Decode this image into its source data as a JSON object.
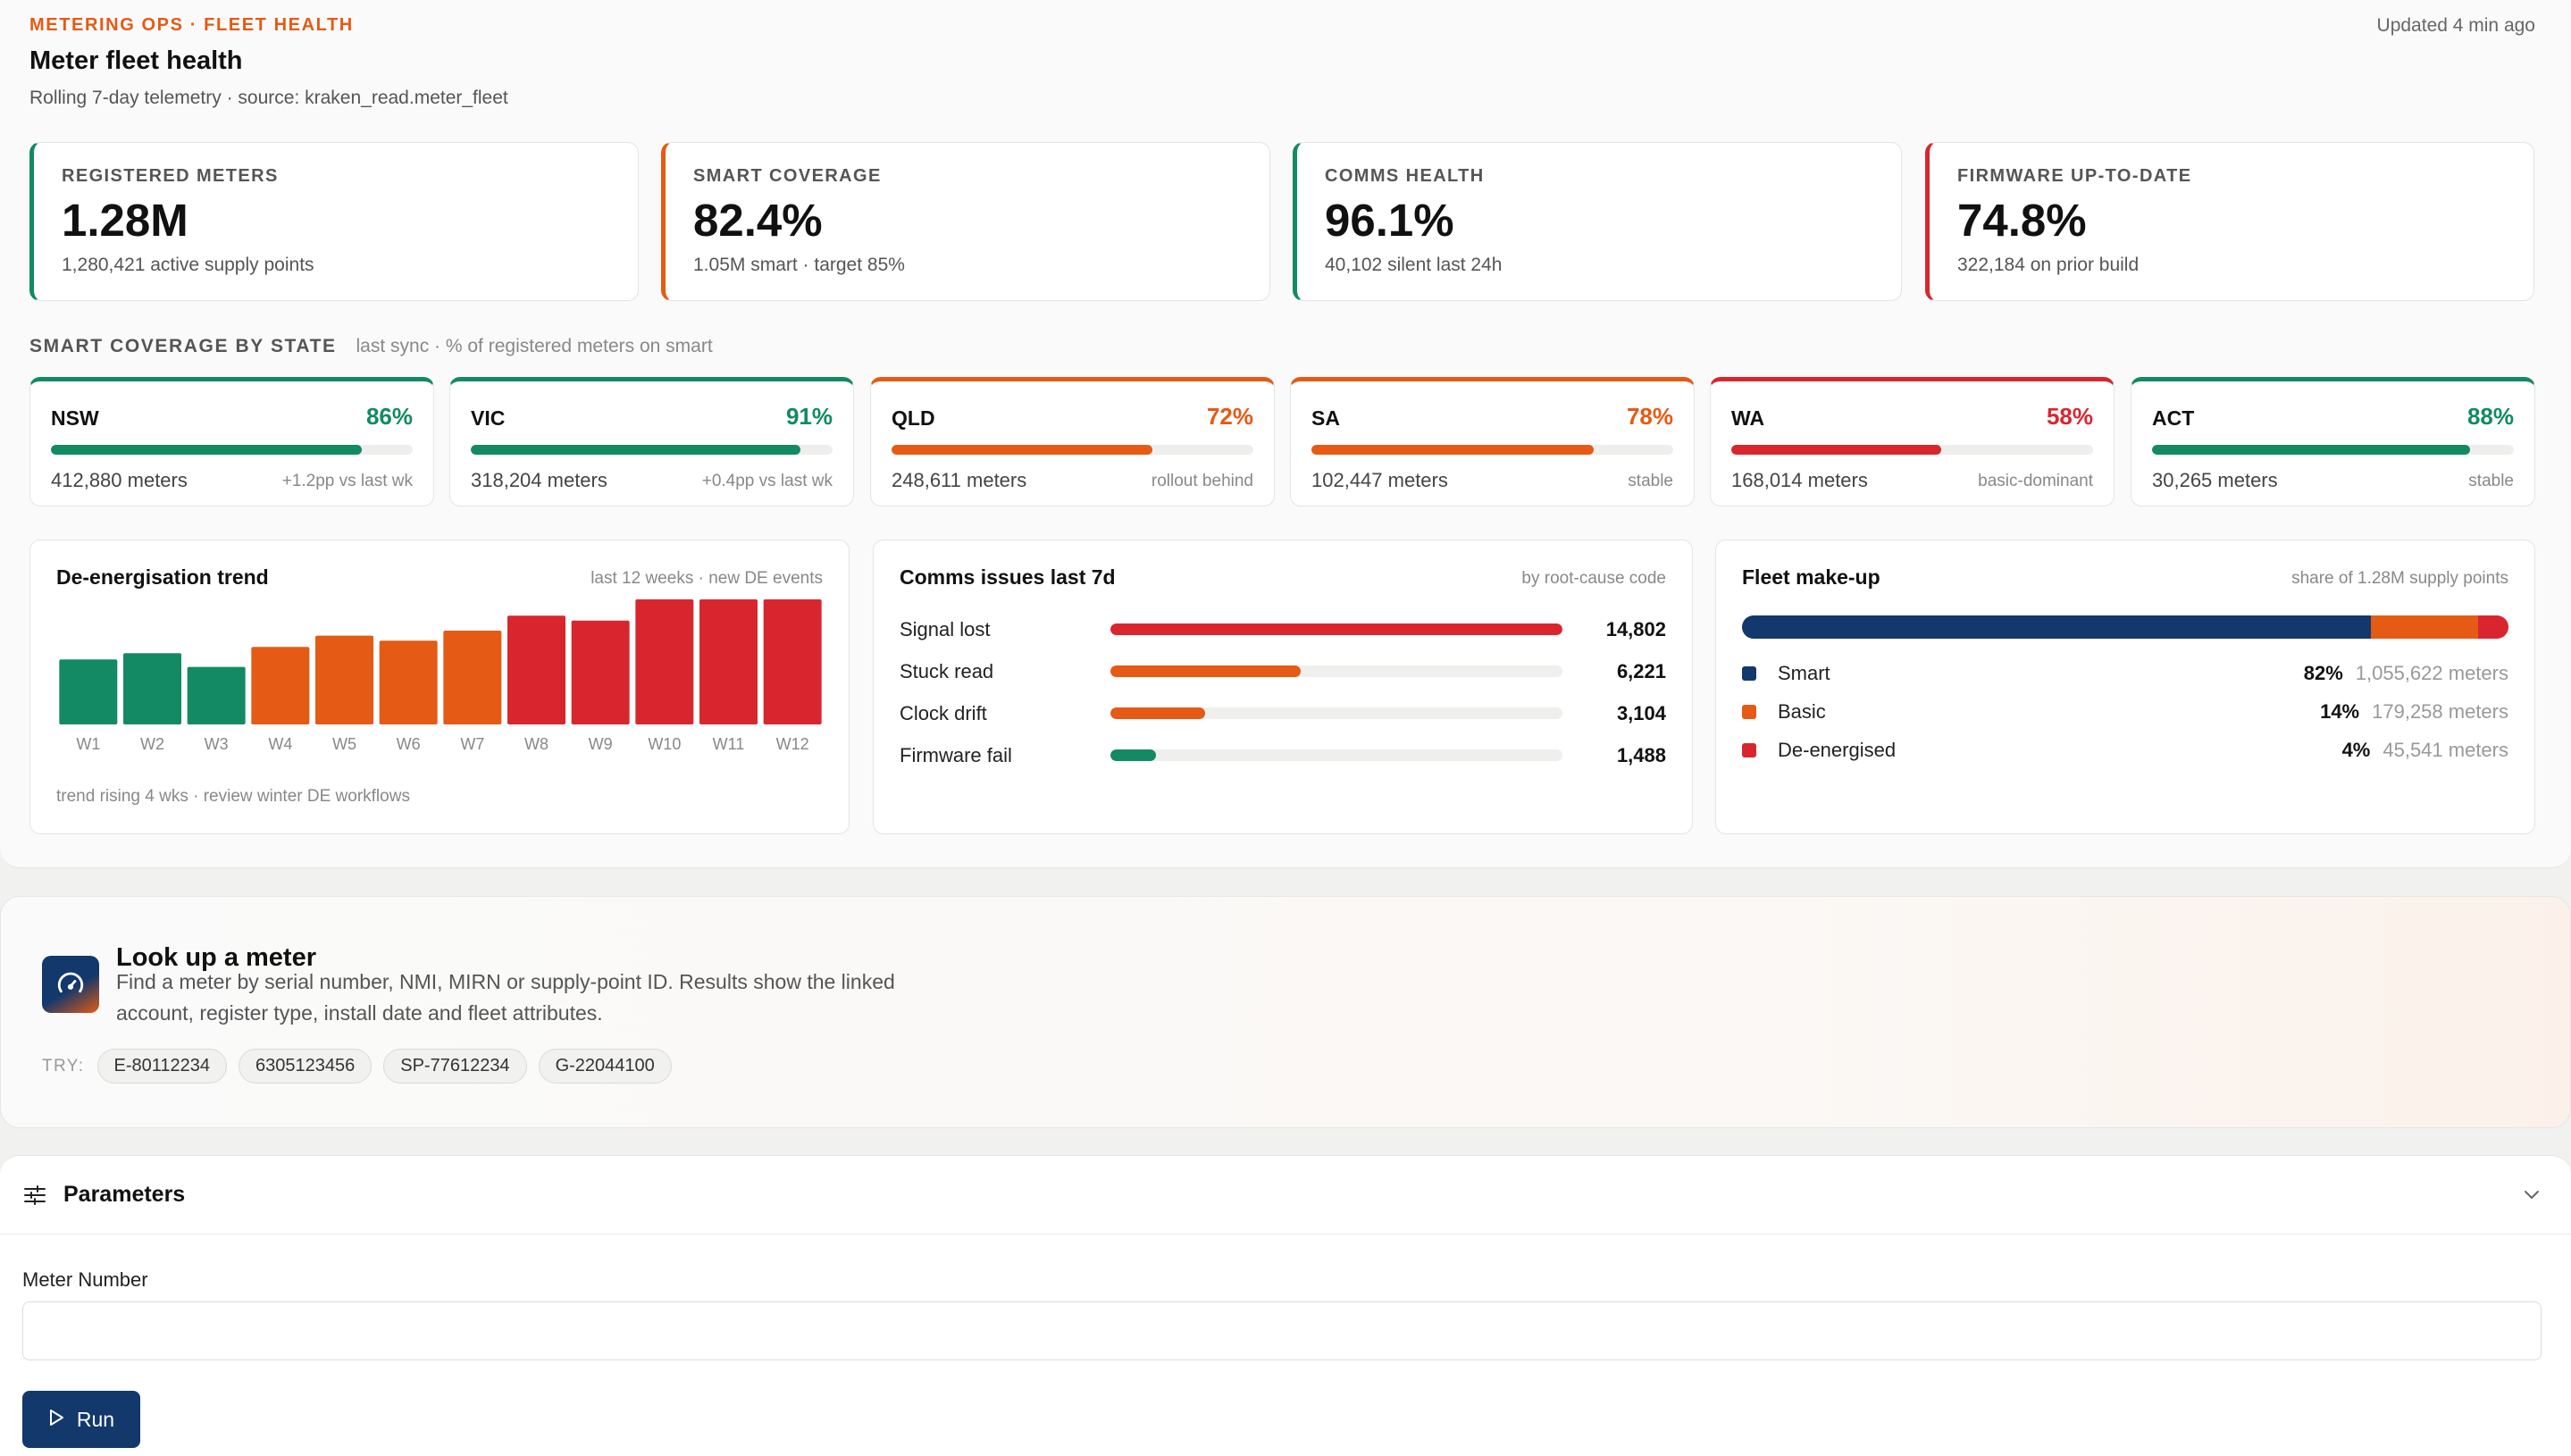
{
  "header": {
    "eyebrow": "METERING OPS · FLEET HEALTH",
    "title": "Meter fleet health",
    "subtitle": "Rolling 7-day telemetry · source: kraken_read.meter_fleet",
    "updated": "Updated 4 min ago"
  },
  "colors": {
    "green": "#138a63",
    "orange": "#e55a14",
    "red": "#d9262e",
    "navy": "#13386b"
  },
  "kpis": [
    {
      "label": "REGISTERED METERS",
      "value": "1.28M",
      "note": "1,280,421 active supply points",
      "accent": "#138a63"
    },
    {
      "label": "SMART COVERAGE",
      "value": "82.4%",
      "note": "1.05M smart · target 85%",
      "accent": "#e55a14"
    },
    {
      "label": "COMMS HEALTH",
      "value": "96.1%",
      "note": "40,102 silent last 24h",
      "accent": "#138a63"
    },
    {
      "label": "FIRMWARE UP-TO-DATE",
      "value": "74.8%",
      "note": "322,184 on prior build",
      "accent": "#d9262e"
    }
  ],
  "coverage_section": {
    "title": "SMART COVERAGE BY STATE",
    "meta": "last sync · % of registered meters on smart"
  },
  "states": [
    {
      "name": "NSW",
      "pct_label": "86%",
      "pct": 86,
      "meters": "412,880 meters",
      "delta": "+1.2pp vs last wk",
      "accent": "#138a63"
    },
    {
      "name": "VIC",
      "pct_label": "91%",
      "pct": 91,
      "meters": "318,204 meters",
      "delta": "+0.4pp vs last wk",
      "accent": "#138a63"
    },
    {
      "name": "QLD",
      "pct_label": "72%",
      "pct": 72,
      "meters": "248,611 meters",
      "delta": "rollout behind",
      "accent": "#e55a14"
    },
    {
      "name": "SA",
      "pct_label": "78%",
      "pct": 78,
      "meters": "102,447 meters",
      "delta": "stable",
      "accent": "#e55a14"
    },
    {
      "name": "WA",
      "pct_label": "58%",
      "pct": 58,
      "meters": "168,014 meters",
      "delta": "basic-dominant",
      "accent": "#d9262e"
    },
    {
      "name": "ACT",
      "pct_label": "88%",
      "pct": 88,
      "meters": "30,265 meters",
      "delta": "stable",
      "accent": "#138a63"
    }
  ],
  "trend": {
    "title": "De-energisation trend",
    "meta": "last 12 weeks · new DE events",
    "note": "trend rising 4 wks · review winter DE workflows"
  },
  "comms": {
    "title": "Comms issues last 7d",
    "meta": "by root-cause code",
    "rows": [
      {
        "label": "Signal lost",
        "value_label": "14,802",
        "value": 14802,
        "color": "#d9262e"
      },
      {
        "label": "Stuck read",
        "value_label": "6,221",
        "value": 6221,
        "color": "#e55a14"
      },
      {
        "label": "Clock drift",
        "value_label": "3,104",
        "value": 3104,
        "color": "#e55a14"
      },
      {
        "label": "Firmware fail",
        "value_label": "1,488",
        "value": 1488,
        "color": "#138a63"
      }
    ]
  },
  "makeup": {
    "title": "Fleet make-up",
    "meta": "share of 1.28M supply points",
    "rows": [
      {
        "label": "Smart",
        "pct_label": "82%",
        "pct": 82,
        "count": "1,055,622 meters",
        "color": "#13386b"
      },
      {
        "label": "Basic",
        "pct_label": "14%",
        "pct": 14,
        "count": "179,258 meters",
        "color": "#e55a14"
      },
      {
        "label": "De-energised",
        "pct_label": "4%",
        "pct": 4,
        "count": "45,541 meters",
        "color": "#d9262e"
      }
    ]
  },
  "chart_data": {
    "type": "bar",
    "categories": [
      "W1",
      "W2",
      "W3",
      "W4",
      "W5",
      "W6",
      "W7",
      "W8",
      "W9",
      "W10",
      "W11",
      "W12"
    ],
    "values": [
      52,
      57,
      46,
      62,
      71,
      67,
      75,
      87,
      83,
      100,
      100,
      100
    ],
    "colors": [
      "#138a63",
      "#138a63",
      "#138a63",
      "#e55a14",
      "#e55a14",
      "#e55a14",
      "#e55a14",
      "#d9262e",
      "#d9262e",
      "#d9262e",
      "#d9262e",
      "#d9262e"
    ],
    "title": "De-energisation trend",
    "xlabel": "",
    "ylabel": "",
    "ylim": [
      0,
      100
    ],
    "grid": false
  },
  "lookup": {
    "title": "Look up a meter",
    "description": "Find a meter by serial number, NMI, MIRN or supply-point ID. Results show the linked account, register type, install date and fleet attributes.",
    "try_label": "TRY:",
    "examples": [
      "E-80112234",
      "6305123456",
      "SP-77612234",
      "G-22044100"
    ],
    "icon": "gauge-icon"
  },
  "parameters": {
    "title": "Parameters",
    "field_label": "Meter Number",
    "field_value": "",
    "run_label": "Run"
  }
}
